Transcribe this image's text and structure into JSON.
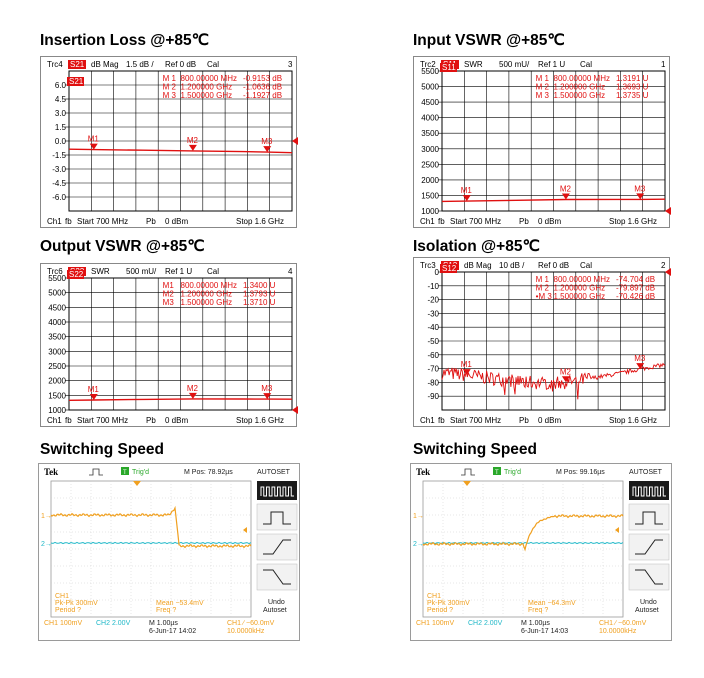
{
  "titles": {
    "p1": "Insertion Loss @+85℃",
    "p2": "Input VSWR @+85℃",
    "p3": "Output VSWR @+85℃",
    "p4": "Isolation @+85℃",
    "p5": "Switching Speed",
    "p6": "Switching Speed"
  },
  "chart_data": [
    {
      "type": "line",
      "header": {
        "trc": "Trc4",
        "param": "S21",
        "fmt": "dB Mag",
        "scale": "1.5 dB /",
        "ref": "Ref 0 dB",
        "cal": "Cal",
        "num": "3"
      },
      "badge": "S21",
      "ticks": [
        "6.0",
        "4.5",
        "3.0",
        "1.5",
        "0.0",
        "-1.5",
        "-3.0",
        "-4.5",
        "-6.0"
      ],
      "ylim": [
        -7.5,
        7.5
      ],
      "ref_value": 0.0,
      "markers": [
        {
          "label": "M 1",
          "freq": "800.00000 MHz",
          "value": "-0.9153 dB"
        },
        {
          "label": "M 2",
          "freq": "1.200000 GHz",
          "value": "-1.0636 dB"
        },
        {
          "label": "M 3",
          "freq": "1.500000 GHz",
          "value": "-1.1927 dB"
        }
      ],
      "marker_labels": [
        "M1",
        "M2",
        "M3"
      ],
      "series": [
        {
          "x": [
            0.7,
            0.8,
            1.0,
            1.2,
            1.4,
            1.5,
            1.6
          ],
          "values": [
            -0.88,
            -0.92,
            -0.99,
            -1.06,
            -1.14,
            -1.19,
            -1.25
          ]
        }
      ],
      "xlim": [
        0.7,
        1.6
      ],
      "footer": {
        "ch": "Ch1",
        "fb": "fb",
        "start": "Start  700 MHz",
        "pb": "Pb",
        "power": "0 dBm",
        "stop": "Stop  1.6 GHz"
      }
    },
    {
      "type": "line",
      "header": {
        "trc": "Trc2",
        "param": "S11",
        "fmt": "SWR",
        "scale": "500 mU/",
        "ref": "Ref 1 U",
        "cal": "Cal",
        "num": "1"
      },
      "badge": "S11",
      "ticks": [
        "5500",
        "5000",
        "4500",
        "4000",
        "3500",
        "3000",
        "2500",
        "2000",
        "1500",
        "1000"
      ],
      "ylim": [
        1000,
        5500
      ],
      "ref_value": 1000,
      "markers": [
        {
          "label": "M 1",
          "freq": "800.00000 MHz",
          "value": "1.3191  U"
        },
        {
          "label": "M 2",
          "freq": "1.200000 GHz",
          "value": "1.3693  U"
        },
        {
          "label": "M 3",
          "freq": "1.500000 GHz",
          "value": "1.3735  U"
        }
      ],
      "marker_labels": [
        "M1",
        "M2",
        "M3"
      ],
      "series": [
        {
          "x": [
            0.7,
            0.8,
            1.0,
            1.2,
            1.4,
            1.5,
            1.6
          ],
          "values": [
            1310,
            1319,
            1345,
            1369,
            1372,
            1374,
            1380
          ]
        }
      ],
      "xlim": [
        0.7,
        1.6
      ],
      "footer": {
        "ch": "Ch1",
        "fb": "fb",
        "start": "Start  700 MHz",
        "pb": "Pb",
        "power": "0 dBm",
        "stop": "Stop  1.6 GHz"
      }
    },
    {
      "type": "line",
      "header": {
        "trc": "Trc6",
        "param": "S22",
        "fmt": "SWR",
        "scale": "500 mU/",
        "ref": "Ref 1 U",
        "cal": "Cal",
        "num": "4"
      },
      "badge": "S22",
      "ticks": [
        "5500",
        "5000",
        "4500",
        "4000",
        "3500",
        "3000",
        "2500",
        "2000",
        "1500",
        "1000"
      ],
      "ylim": [
        1000,
        5500
      ],
      "ref_value": 1000,
      "markers": [
        {
          "label": "M1",
          "freq": "800.00000 MHz",
          "value": "1.3400  U"
        },
        {
          "label": "M2",
          "freq": "1.200000 GHz",
          "value": "1.3793  U"
        },
        {
          "label": "M3",
          "freq": "1.500000 GHz",
          "value": "1.3710  U"
        }
      ],
      "marker_labels": [
        "M1",
        "M2",
        "M3"
      ],
      "series": [
        {
          "x": [
            0.7,
            0.8,
            1.0,
            1.2,
            1.4,
            1.5,
            1.6
          ],
          "values": [
            1330,
            1340,
            1360,
            1379,
            1375,
            1371,
            1368
          ]
        }
      ],
      "xlim": [
        0.7,
        1.6
      ],
      "footer": {
        "ch": "Ch1",
        "fb": "fb",
        "start": "Start  700 MHz",
        "pb": "Pb",
        "power": "0 dBm",
        "stop": "Stop  1.6 GHz"
      }
    },
    {
      "type": "line",
      "header": {
        "trc": "Trc3",
        "param": "S12",
        "fmt": "dB Mag",
        "scale": "10 dB /",
        "ref": "Ref 0 dB",
        "cal": "Cal",
        "num": "2"
      },
      "badge": "S12",
      "ticks": [
        "0",
        "-10",
        "-20",
        "-30",
        "-40",
        "-50",
        "-60",
        "-70",
        "-80",
        "-90"
      ],
      "ylim": [
        -100,
        0
      ],
      "ref_value": 0,
      "markers": [
        {
          "label": "M 1",
          "freq": "800.00000 MHz",
          "value": "-74.704  dB"
        },
        {
          "label": "M 2",
          "freq": "1.200000 GHz",
          "value": "-79.897  dB"
        },
        {
          "label": "•M 3",
          "freq": "1.500000 GHz",
          "value": "-70.426  dB"
        }
      ],
      "marker_labels": [
        "M1",
        "M2",
        "M3"
      ],
      "series": [
        {
          "x": [
            0.7,
            0.8,
            0.9,
            1.0,
            1.1,
            1.2,
            1.3,
            1.4,
            1.5,
            1.6
          ],
          "values": [
            -73,
            -74.7,
            -77,
            -79,
            -80.5,
            -79.9,
            -77,
            -74,
            -70.4,
            -67
          ]
        }
      ],
      "xlim": [
        0.7,
        1.6
      ],
      "footer": {
        "ch": "Ch1",
        "fb": "fb",
        "start": "Start  700 MHz",
        "pb": "Pb",
        "power": "0 dBm",
        "stop": "Stop  1.6 GHz"
      }
    }
  ],
  "scopes": [
    {
      "tek": "Tek",
      "trig": "Trig'd",
      "trig_box": "T",
      "mpos": "M Pos: 78.92µs",
      "autoset": "AUTOSET",
      "ch_label": "CH1",
      "pkpk": "Pk-Pk 300mV",
      "period": "Period ?",
      "mean": "Mean −53.4mV",
      "freq": "Freq ?",
      "ch1_scale": "CH1  100mV",
      "ch2_scale": "CH2  2.00V",
      "timebase": "M 1.00µs",
      "date": "6-Jun-17 14:02",
      "trig_level": "CH1 ∕ −60.0mV",
      "trig_freq": "10.0000kHz",
      "undo": "Undo",
      "undo2": "Autoset",
      "ch1_marker": "1→",
      "ch2_marker": "2→",
      "edge": "falling"
    },
    {
      "tek": "Tek",
      "trig": "Trig'd",
      "trig_box": "T",
      "mpos": "M Pos: 99.16µs",
      "autoset": "AUTOSET",
      "ch_label": "CH1",
      "pkpk": "Pk-Pk 300mV",
      "period": "Period ?",
      "mean": "Mean −64.3mV",
      "freq": "Freq ?",
      "ch1_scale": "CH1  100mV",
      "ch2_scale": "CH2  2.00V",
      "timebase": "M 1.00µs",
      "date": "6-Jun-17 14:03",
      "trig_level": "CH1 ∕ −60.0mV",
      "trig_freq": "10.0000kHz",
      "undo": "Undo",
      "undo2": "Autoset",
      "ch1_marker": "1→",
      "ch2_marker": "2→",
      "edge": "rising"
    }
  ]
}
